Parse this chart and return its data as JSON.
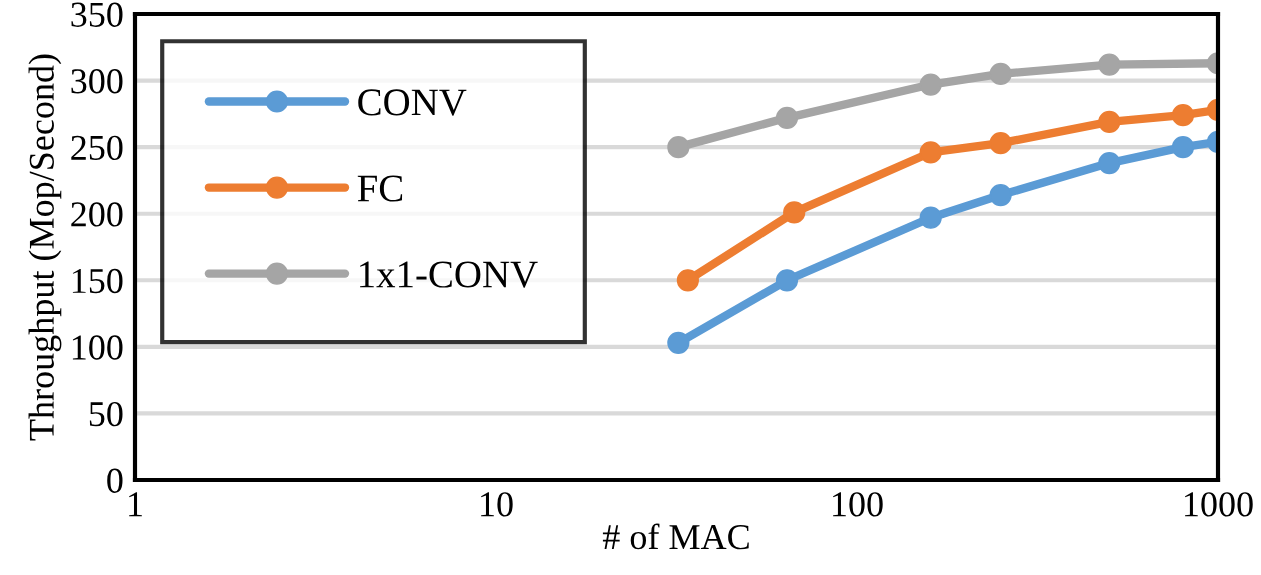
{
  "chart_data": {
    "type": "line",
    "xlabel": "# of MAC",
    "ylabel": "Throughput (Mop/Second)",
    "log": "x",
    "xlim": [
      1,
      1000
    ],
    "xticks": [
      1,
      10,
      100,
      1000
    ],
    "ylim": [
      0,
      350
    ],
    "yticks": [
      0,
      50,
      100,
      150,
      200,
      250,
      300,
      350
    ],
    "grid": "y",
    "legend": "top left",
    "marker": "circle",
    "line_style": "solid",
    "series": [
      {
        "name": "CONV",
        "color": "#5b9bd5",
        "x": [
          32,
          64,
          160,
          250,
          500,
          800,
          1000
        ],
        "values": [
          103,
          150,
          197,
          214,
          238,
          250,
          254
        ]
      },
      {
        "name": "FC",
        "color": "#ed7d31",
        "x": [
          34,
          67,
          160,
          250,
          500,
          800,
          1000
        ],
        "values": [
          150,
          201,
          246,
          253,
          269,
          274,
          278
        ]
      },
      {
        "name": "1x1-CONV",
        "color": "#a5a5a5",
        "x": [
          32,
          64,
          160,
          250,
          500,
          1000
        ],
        "values": [
          250,
          272,
          297,
          305,
          312,
          313
        ]
      }
    ]
  }
}
